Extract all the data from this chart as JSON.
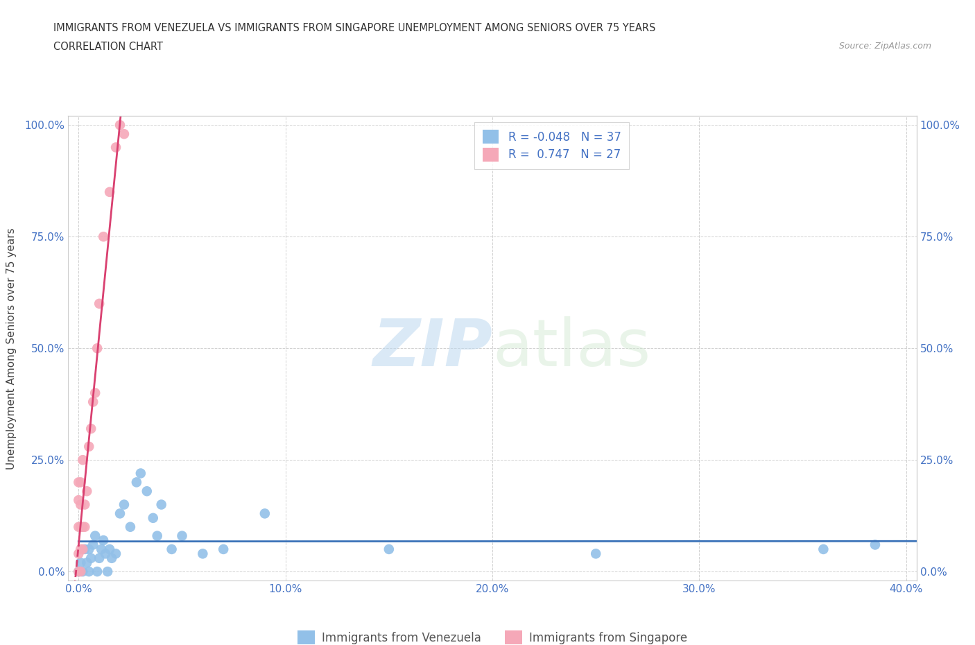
{
  "title_line1": "IMMIGRANTS FROM VENEZUELA VS IMMIGRANTS FROM SINGAPORE UNEMPLOYMENT AMONG SENIORS OVER 75 YEARS",
  "title_line2": "CORRELATION CHART",
  "source_text": "Source: ZipAtlas.com",
  "ylabel": "Unemployment Among Seniors over 75 years",
  "xlabel_venezuela": "Immigrants from Venezuela",
  "xlabel_singapore": "Immigrants from Singapore",
  "xlim": [
    -0.005,
    0.405
  ],
  "ylim": [
    -0.02,
    1.02
  ],
  "xticks": [
    0.0,
    0.1,
    0.2,
    0.3,
    0.4
  ],
  "xticklabels": [
    "0.0%",
    "",
    "",
    "",
    "40.0%"
  ],
  "yticks": [
    0.0,
    0.25,
    0.5,
    0.75,
    1.0
  ],
  "yticklabels": [
    "0.0%",
    "25.0%",
    "50.0%",
    "75.0%",
    "100.0%"
  ],
  "venezuela_color": "#92C0E8",
  "singapore_color": "#F5A8B8",
  "trendline_venezuela_color": "#3A72B8",
  "trendline_singapore_color": "#D94070",
  "r_venezuela": -0.048,
  "n_venezuela": 37,
  "r_singapore": 0.747,
  "n_singapore": 27,
  "watermark_zip": "ZIP",
  "watermark_atlas": "atlas",
  "venezuela_x": [
    0.0,
    0.001,
    0.002,
    0.003,
    0.004,
    0.005,
    0.005,
    0.006,
    0.007,
    0.008,
    0.009,
    0.01,
    0.011,
    0.012,
    0.013,
    0.014,
    0.015,
    0.016,
    0.018,
    0.02,
    0.022,
    0.025,
    0.028,
    0.03,
    0.033,
    0.036,
    0.038,
    0.04,
    0.045,
    0.05,
    0.06,
    0.07,
    0.09,
    0.15,
    0.25,
    0.36,
    0.385
  ],
  "venezuela_y": [
    0.0,
    0.02,
    0.0,
    0.05,
    0.02,
    0.05,
    0.0,
    0.03,
    0.06,
    0.08,
    0.0,
    0.03,
    0.05,
    0.07,
    0.04,
    0.0,
    0.05,
    0.03,
    0.04,
    0.13,
    0.15,
    0.1,
    0.2,
    0.22,
    0.18,
    0.12,
    0.08,
    0.15,
    0.05,
    0.08,
    0.04,
    0.05,
    0.13,
    0.05,
    0.04,
    0.05,
    0.06
  ],
  "singapore_x": [
    0.0,
    0.0,
    0.0,
    0.0,
    0.0,
    0.001,
    0.001,
    0.001,
    0.001,
    0.001,
    0.002,
    0.002,
    0.002,
    0.003,
    0.003,
    0.004,
    0.005,
    0.006,
    0.007,
    0.008,
    0.009,
    0.01,
    0.012,
    0.015,
    0.018,
    0.02,
    0.022
  ],
  "singapore_y": [
    0.0,
    0.04,
    0.1,
    0.16,
    0.2,
    0.0,
    0.05,
    0.1,
    0.15,
    0.2,
    0.05,
    0.1,
    0.25,
    0.1,
    0.15,
    0.18,
    0.28,
    0.32,
    0.38,
    0.4,
    0.5,
    0.6,
    0.75,
    0.85,
    0.95,
    1.0,
    0.98
  ]
}
